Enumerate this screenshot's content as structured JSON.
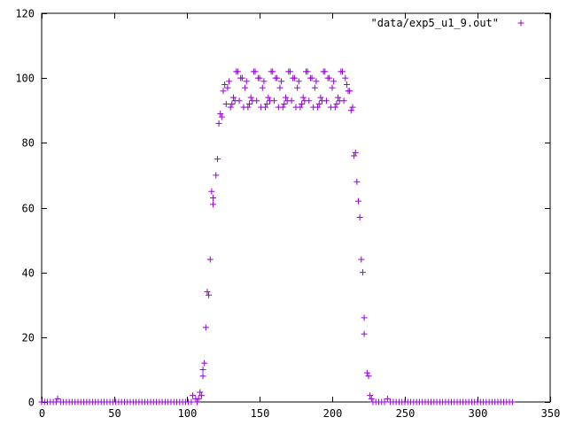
{
  "chart_data": {
    "type": "scatter",
    "title": "",
    "xlabel": "",
    "ylabel": "",
    "xlim": [
      0,
      350
    ],
    "ylim": [
      0,
      120
    ],
    "x_ticks": [
      0,
      50,
      100,
      150,
      200,
      250,
      300,
      350
    ],
    "y_ticks": [
      0,
      20,
      40,
      60,
      80,
      100,
      120
    ],
    "grid": false,
    "legend_position": "top-right",
    "marker": "plus",
    "colors": {
      "series": "#9400d3",
      "axis": "#000000",
      "background": "#ffffff"
    },
    "series": [
      {
        "name": "\"data/exp5_u1_9.out\"",
        "points": [
          [
            0,
            0
          ],
          [
            2,
            0
          ],
          [
            4,
            0
          ],
          [
            6,
            0
          ],
          [
            8,
            0
          ],
          [
            10,
            0
          ],
          [
            11,
            1
          ],
          [
            13,
            0
          ],
          [
            15,
            0
          ],
          [
            17,
            0
          ],
          [
            19,
            0
          ],
          [
            21,
            0
          ],
          [
            23,
            0
          ],
          [
            25,
            0
          ],
          [
            27,
            0
          ],
          [
            29,
            0
          ],
          [
            31,
            0
          ],
          [
            33,
            0
          ],
          [
            35,
            0
          ],
          [
            37,
            0
          ],
          [
            39,
            0
          ],
          [
            41,
            0
          ],
          [
            43,
            0
          ],
          [
            45,
            0
          ],
          [
            47,
            0
          ],
          [
            49,
            0
          ],
          [
            51,
            0
          ],
          [
            53,
            0
          ],
          [
            55,
            0
          ],
          [
            57,
            0
          ],
          [
            59,
            0
          ],
          [
            61,
            0
          ],
          [
            63,
            0
          ],
          [
            65,
            0
          ],
          [
            67,
            0
          ],
          [
            69,
            0
          ],
          [
            71,
            0
          ],
          [
            73,
            0
          ],
          [
            75,
            0
          ],
          [
            77,
            0
          ],
          [
            79,
            0
          ],
          [
            81,
            0
          ],
          [
            83,
            0
          ],
          [
            85,
            0
          ],
          [
            87,
            0
          ],
          [
            89,
            0
          ],
          [
            91,
            0
          ],
          [
            93,
            0
          ],
          [
            95,
            0
          ],
          [
            97,
            0
          ],
          [
            99,
            0
          ],
          [
            101,
            0
          ],
          [
            103,
            0
          ],
          [
            104,
            2
          ],
          [
            106,
            1
          ],
          [
            107,
            0
          ],
          [
            108,
            1
          ],
          [
            109,
            3
          ],
          [
            110,
            2
          ],
          [
            111,
            10
          ],
          [
            111,
            8
          ],
          [
            112,
            12
          ],
          [
            113,
            23
          ],
          [
            114,
            34
          ],
          [
            115,
            33
          ],
          [
            116,
            44
          ],
          [
            117,
            65
          ],
          [
            118,
            61
          ],
          [
            118,
            63
          ],
          [
            120,
            70
          ],
          [
            121,
            75
          ],
          [
            122,
            86
          ],
          [
            123,
            89
          ],
          [
            124,
            88
          ],
          [
            125,
            96
          ],
          [
            126,
            98
          ],
          [
            127,
            92
          ],
          [
            128,
            97
          ],
          [
            129,
            99
          ],
          [
            130,
            91
          ],
          [
            131,
            92
          ],
          [
            132,
            94
          ],
          [
            133,
            93
          ],
          [
            134,
            102
          ],
          [
            135,
            102
          ],
          [
            136,
            93
          ],
          [
            137,
            100
          ],
          [
            138,
            100
          ],
          [
            139,
            91
          ],
          [
            140,
            97
          ],
          [
            141,
            99
          ],
          [
            142,
            91
          ],
          [
            143,
            92
          ],
          [
            144,
            94
          ],
          [
            145,
            93
          ],
          [
            146,
            102
          ],
          [
            147,
            102
          ],
          [
            148,
            93
          ],
          [
            149,
            100
          ],
          [
            150,
            100
          ],
          [
            151,
            91
          ],
          [
            152,
            97
          ],
          [
            153,
            99
          ],
          [
            154,
            91
          ],
          [
            155,
            92
          ],
          [
            156,
            94
          ],
          [
            157,
            93
          ],
          [
            158,
            102
          ],
          [
            159,
            102
          ],
          [
            160,
            93
          ],
          [
            161,
            100
          ],
          [
            162,
            100
          ],
          [
            163,
            91
          ],
          [
            164,
            97
          ],
          [
            165,
            99
          ],
          [
            166,
            91
          ],
          [
            167,
            92
          ],
          [
            168,
            94
          ],
          [
            169,
            93
          ],
          [
            170,
            102
          ],
          [
            171,
            102
          ],
          [
            172,
            93
          ],
          [
            173,
            100
          ],
          [
            174,
            100
          ],
          [
            175,
            91
          ],
          [
            176,
            97
          ],
          [
            177,
            99
          ],
          [
            178,
            91
          ],
          [
            179,
            92
          ],
          [
            180,
            94
          ],
          [
            181,
            93
          ],
          [
            182,
            102
          ],
          [
            183,
            102
          ],
          [
            184,
            93
          ],
          [
            185,
            100
          ],
          [
            186,
            100
          ],
          [
            187,
            91
          ],
          [
            188,
            97
          ],
          [
            189,
            99
          ],
          [
            190,
            91
          ],
          [
            191,
            92
          ],
          [
            192,
            94
          ],
          [
            193,
            93
          ],
          [
            194,
            102
          ],
          [
            195,
            102
          ],
          [
            196,
            93
          ],
          [
            197,
            100
          ],
          [
            198,
            100
          ],
          [
            199,
            91
          ],
          [
            200,
            97
          ],
          [
            201,
            99
          ],
          [
            202,
            91
          ],
          [
            203,
            92
          ],
          [
            204,
            94
          ],
          [
            205,
            93
          ],
          [
            206,
            102
          ],
          [
            207,
            102
          ],
          [
            208,
            93
          ],
          [
            209,
            100
          ],
          [
            210,
            98
          ],
          [
            211,
            96
          ],
          [
            212,
            96
          ],
          [
            213,
            90
          ],
          [
            214,
            91
          ],
          [
            215,
            76
          ],
          [
            216,
            77
          ],
          [
            217,
            68
          ],
          [
            218,
            62
          ],
          [
            219,
            57
          ],
          [
            220,
            44
          ],
          [
            221,
            40
          ],
          [
            222,
            26
          ],
          [
            222,
            21
          ],
          [
            224,
            9
          ],
          [
            225,
            8
          ],
          [
            226,
            2
          ],
          [
            227,
            1
          ],
          [
            228,
            0
          ],
          [
            230,
            0
          ],
          [
            232,
            0
          ],
          [
            234,
            0
          ],
          [
            236,
            0
          ],
          [
            238,
            1
          ],
          [
            240,
            0
          ],
          [
            242,
            0
          ],
          [
            244,
            0
          ],
          [
            246,
            0
          ],
          [
            248,
            0
          ],
          [
            250,
            0
          ],
          [
            252,
            0
          ],
          [
            254,
            0
          ],
          [
            256,
            0
          ],
          [
            258,
            0
          ],
          [
            260,
            0
          ],
          [
            262,
            0
          ],
          [
            264,
            0
          ],
          [
            266,
            0
          ],
          [
            268,
            0
          ],
          [
            270,
            0
          ],
          [
            272,
            0
          ],
          [
            274,
            0
          ],
          [
            276,
            0
          ],
          [
            278,
            0
          ],
          [
            280,
            0
          ],
          [
            282,
            0
          ],
          [
            284,
            0
          ],
          [
            286,
            0
          ],
          [
            288,
            0
          ],
          [
            290,
            0
          ],
          [
            292,
            0
          ],
          [
            294,
            0
          ],
          [
            296,
            0
          ],
          [
            298,
            0
          ],
          [
            300,
            0
          ],
          [
            302,
            0
          ],
          [
            304,
            0
          ],
          [
            306,
            0
          ],
          [
            308,
            0
          ],
          [
            310,
            0
          ],
          [
            312,
            0
          ],
          [
            314,
            0
          ],
          [
            316,
            0
          ],
          [
            318,
            0
          ],
          [
            320,
            0
          ],
          [
            322,
            0
          ],
          [
            324,
            0
          ]
        ]
      }
    ]
  }
}
